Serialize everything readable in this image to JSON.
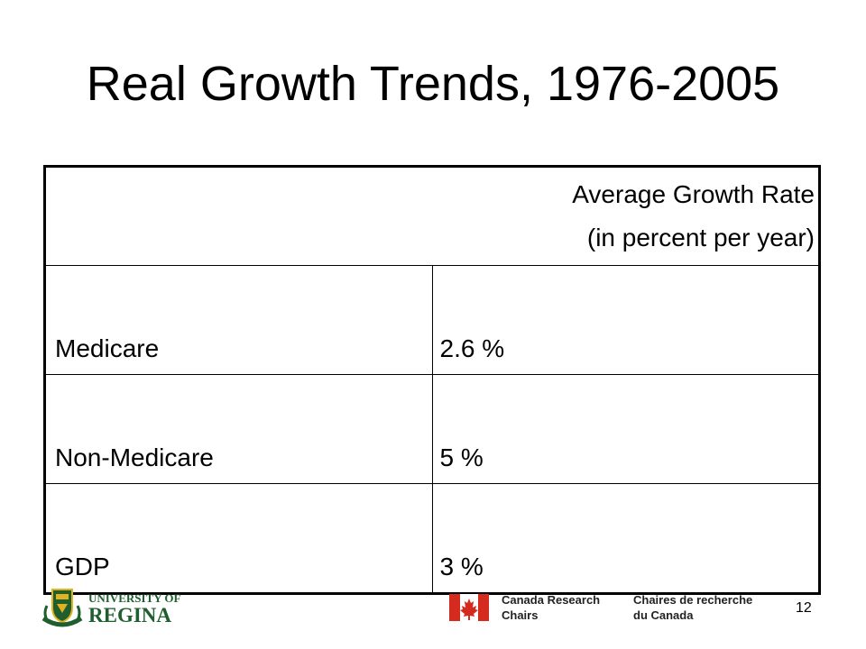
{
  "slide": {
    "title": "Real Growth Trends, 1976-2005",
    "page_number": "12"
  },
  "table": {
    "header_line1": "Average Growth Rate",
    "header_line2": "(in percent per year)",
    "rows": [
      {
        "label": "Medicare",
        "value": "2.6 %"
      },
      {
        "label": "Non-Medicare",
        "value": "5 %"
      },
      {
        "label": "GDP",
        "value": "3 %"
      }
    ]
  },
  "footer": {
    "university_line1": "UNIVERSITY OF",
    "university_line2": "REGINA",
    "crc_en_line1": "Canada Research",
    "crc_en_line2": "Chairs",
    "crc_fr_line1": "Chaires de recherche",
    "crc_fr_line2": "du Canada"
  },
  "colors": {
    "regina_green": "#1f5e2e",
    "regina_gold": "#e2b321",
    "canada_red": "#d52b1e"
  }
}
